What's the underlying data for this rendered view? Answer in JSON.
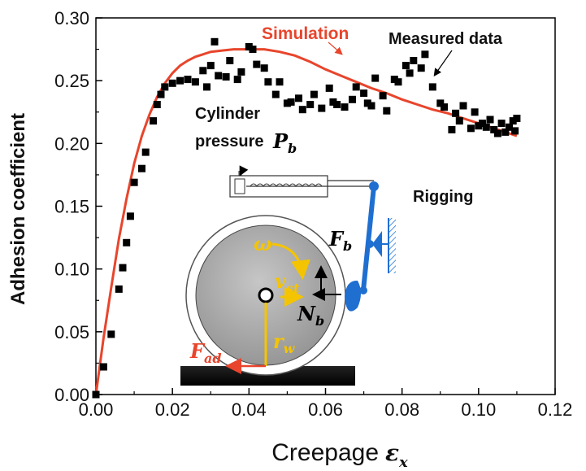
{
  "chart_data": {
    "type": "scatter",
    "xlabel": "Creepage",
    "xlabel_symbol": "ε",
    "xlabel_sub": "x",
    "ylabel": "Adhesion coefficient",
    "xlim": [
      0.0,
      0.12
    ],
    "ylim": [
      0.0,
      0.3
    ],
    "x_ticks": [
      "0.00",
      "0.02",
      "0.04",
      "0.06",
      "0.08",
      "0.10",
      "0.12"
    ],
    "y_ticks": [
      "0.00",
      "0.05",
      "0.10",
      "0.15",
      "0.20",
      "0.25",
      "0.30"
    ],
    "grid": false,
    "series": [
      {
        "name": "Measured data",
        "kind": "scatter",
        "color": "#000000",
        "points": [
          [
            0.0,
            0.0
          ],
          [
            0.002,
            0.022
          ],
          [
            0.004,
            0.048
          ],
          [
            0.006,
            0.084
          ],
          [
            0.007,
            0.101
          ],
          [
            0.008,
            0.121
          ],
          [
            0.009,
            0.142
          ],
          [
            0.01,
            0.169
          ],
          [
            0.012,
            0.18
          ],
          [
            0.013,
            0.193
          ],
          [
            0.015,
            0.218
          ],
          [
            0.016,
            0.231
          ],
          [
            0.017,
            0.239
          ],
          [
            0.018,
            0.245
          ],
          [
            0.02,
            0.248
          ],
          [
            0.022,
            0.25
          ],
          [
            0.024,
            0.251
          ],
          [
            0.026,
            0.249
          ],
          [
            0.028,
            0.258
          ],
          [
            0.029,
            0.245
          ],
          [
            0.03,
            0.262
          ],
          [
            0.031,
            0.281
          ],
          [
            0.032,
            0.254
          ],
          [
            0.034,
            0.253
          ],
          [
            0.035,
            0.266
          ],
          [
            0.037,
            0.251
          ],
          [
            0.038,
            0.257
          ],
          [
            0.04,
            0.277
          ],
          [
            0.041,
            0.275
          ],
          [
            0.042,
            0.263
          ],
          [
            0.044,
            0.26
          ],
          [
            0.045,
            0.249
          ],
          [
            0.047,
            0.239
          ],
          [
            0.048,
            0.249
          ],
          [
            0.05,
            0.232
          ],
          [
            0.051,
            0.233
          ],
          [
            0.053,
            0.236
          ],
          [
            0.054,
            0.227
          ],
          [
            0.056,
            0.231
          ],
          [
            0.057,
            0.239
          ],
          [
            0.059,
            0.228
          ],
          [
            0.061,
            0.244
          ],
          [
            0.062,
            0.233
          ],
          [
            0.063,
            0.231
          ],
          [
            0.065,
            0.229
          ],
          [
            0.067,
            0.235
          ],
          [
            0.068,
            0.245
          ],
          [
            0.07,
            0.24
          ],
          [
            0.071,
            0.232
          ],
          [
            0.072,
            0.23
          ],
          [
            0.073,
            0.252
          ],
          [
            0.075,
            0.238
          ],
          [
            0.076,
            0.226
          ],
          [
            0.078,
            0.251
          ],
          [
            0.079,
            0.249
          ],
          [
            0.081,
            0.262
          ],
          [
            0.082,
            0.256
          ],
          [
            0.083,
            0.266
          ],
          [
            0.085,
            0.26
          ],
          [
            0.086,
            0.271
          ],
          [
            0.088,
            0.245
          ],
          [
            0.09,
            0.232
          ],
          [
            0.091,
            0.229
          ],
          [
            0.093,
            0.211
          ],
          [
            0.094,
            0.224
          ],
          [
            0.095,
            0.218
          ],
          [
            0.096,
            0.23
          ],
          [
            0.098,
            0.212
          ],
          [
            0.099,
            0.225
          ],
          [
            0.1,
            0.214
          ],
          [
            0.101,
            0.216
          ],
          [
            0.102,
            0.213
          ],
          [
            0.103,
            0.219
          ],
          [
            0.104,
            0.211
          ],
          [
            0.105,
            0.208
          ],
          [
            0.106,
            0.216
          ],
          [
            0.107,
            0.209
          ],
          [
            0.108,
            0.213
          ],
          [
            0.109,
            0.218
          ],
          [
            0.1095,
            0.21
          ],
          [
            0.11,
            0.22
          ]
        ]
      },
      {
        "name": "Simulation",
        "kind": "line",
        "color": "#e8452c",
        "points": [
          [
            0.0,
            0.0
          ],
          [
            0.002,
            0.045
          ],
          [
            0.004,
            0.085
          ],
          [
            0.006,
            0.124
          ],
          [
            0.008,
            0.156
          ],
          [
            0.01,
            0.184
          ],
          [
            0.012,
            0.206
          ],
          [
            0.014,
            0.223
          ],
          [
            0.016,
            0.237
          ],
          [
            0.018,
            0.248
          ],
          [
            0.02,
            0.256
          ],
          [
            0.022,
            0.262
          ],
          [
            0.024,
            0.266
          ],
          [
            0.026,
            0.269
          ],
          [
            0.028,
            0.271
          ],
          [
            0.03,
            0.273
          ],
          [
            0.033,
            0.274
          ],
          [
            0.036,
            0.275
          ],
          [
            0.04,
            0.275
          ],
          [
            0.044,
            0.275
          ],
          [
            0.048,
            0.273
          ],
          [
            0.052,
            0.27
          ],
          [
            0.056,
            0.265
          ],
          [
            0.06,
            0.259
          ],
          [
            0.064,
            0.254
          ],
          [
            0.068,
            0.249
          ],
          [
            0.072,
            0.244
          ],
          [
            0.076,
            0.24
          ],
          [
            0.08,
            0.235
          ],
          [
            0.084,
            0.231
          ],
          [
            0.088,
            0.227
          ],
          [
            0.092,
            0.224
          ],
          [
            0.096,
            0.22
          ],
          [
            0.1,
            0.216
          ],
          [
            0.104,
            0.212
          ],
          [
            0.11,
            0.206
          ]
        ]
      }
    ],
    "annotations": {
      "simulation_label": "Simulation",
      "measured_label": "Measured data",
      "cylinder_line1": "Cylinder",
      "cylinder_line2": "pressure",
      "cylinder_symbol": "P",
      "cylinder_sub": "b",
      "rigging_label": "Rigging",
      "omega": "ω",
      "v_symbol": "v",
      "v_sub": "st",
      "fb_symbol": "F",
      "fb_sub": "b",
      "nb_symbol": "N",
      "nb_sub": "b",
      "rw_symbol": "r",
      "rw_sub": "w",
      "fad_symbol": "F",
      "fad_sub": "ad"
    },
    "colors": {
      "simulation": "#e8452c",
      "measured": "#000000",
      "yellow": "#f5c400",
      "blue": "#1f6fd1",
      "red": "#e8452c"
    }
  }
}
